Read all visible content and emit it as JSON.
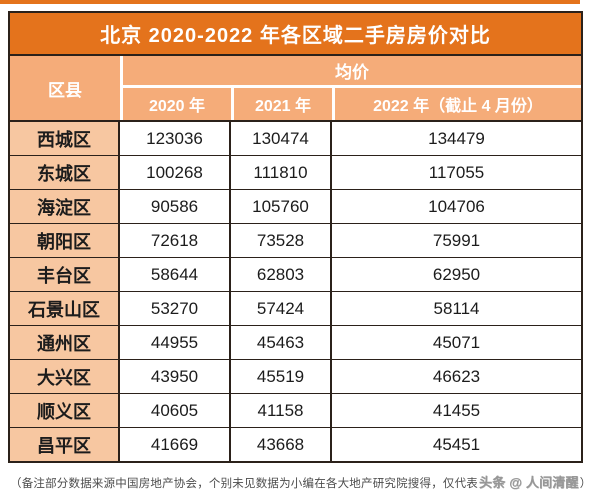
{
  "title": "北京 2020-2022 年各区域二手房房价对比",
  "header": {
    "district": "区县",
    "avg_price": "均价",
    "years": [
      "2020 年",
      "2021 年",
      "2022 年（截止 4 月份）"
    ]
  },
  "rows": [
    {
      "district": "西城区",
      "y2020": "123036",
      "y2021": "130474",
      "y2022": "134479"
    },
    {
      "district": "东城区",
      "y2020": "100268",
      "y2021": "111810",
      "y2022": "117055"
    },
    {
      "district": "海淀区",
      "y2020": "90586",
      "y2021": "105760",
      "y2022": "104706"
    },
    {
      "district": "朝阳区",
      "y2020": "72618",
      "y2021": "73528",
      "y2022": "75991"
    },
    {
      "district": "丰台区",
      "y2020": "58644",
      "y2021": "62803",
      "y2022": "62950"
    },
    {
      "district": "石景山区",
      "y2020": "53270",
      "y2021": "57424",
      "y2022": "58114"
    },
    {
      "district": "通州区",
      "y2020": "44955",
      "y2021": "45463",
      "y2022": "45071"
    },
    {
      "district": "大兴区",
      "y2020": "43950",
      "y2021": "45519",
      "y2022": "46623"
    },
    {
      "district": "顺义区",
      "y2020": "40605",
      "y2021": "41158",
      "y2022": "41455"
    },
    {
      "district": "昌平区",
      "y2020": "41669",
      "y2021": "43668",
      "y2022": "45451"
    }
  ],
  "footer": {
    "note_prefix": "（备注部分数据来源中国房地产协会，个别未见数据为小编在各大地产研究院搜得，仅代表",
    "watermark": "头条 @ 人间清醒",
    "note_suffix": "）"
  },
  "colors": {
    "title_bg": "#E4731C",
    "header_bg": "#F5AC79",
    "district_bg": "#F7C7A1",
    "border_dark": "#2B211A",
    "text_light": "#FFFFFF",
    "text_dark": "#1C1C1C"
  },
  "chart_data": {
    "type": "table",
    "title": "北京 2020-2022 年各区域二手房房价对比",
    "group_header": "均价",
    "columns": [
      "区县",
      "2020 年",
      "2021 年",
      "2022 年（截止 4 月份）"
    ],
    "rows": [
      [
        "西城区",
        123036,
        130474,
        134479
      ],
      [
        "东城区",
        100268,
        111810,
        117055
      ],
      [
        "海淀区",
        90586,
        105760,
        104706
      ],
      [
        "朝阳区",
        72618,
        73528,
        75991
      ],
      [
        "丰台区",
        58644,
        62803,
        62950
      ],
      [
        "石景山区",
        53270,
        57424,
        58114
      ],
      [
        "通州区",
        44955,
        45463,
        45071
      ],
      [
        "大兴区",
        43950,
        45519,
        46623
      ],
      [
        "顺义区",
        40605,
        41158,
        41455
      ],
      [
        "昌平区",
        41669,
        43668,
        45451
      ]
    ]
  }
}
